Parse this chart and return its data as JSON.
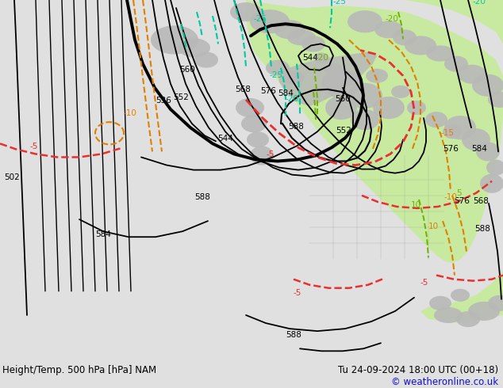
{
  "title_left": "Height/Temp. 500 hPa [hPa] NAM",
  "title_right": "Tu 24-09-2024 18:00 UTC (00+18)",
  "copyright": "© weatheronline.co.uk",
  "bg_color": "#e0e0e0",
  "map_bg_color": "#e8e8e8",
  "green_fill_color": "#c8eaa0",
  "gray_land_color": "#b8b8b8",
  "height_contour_color": "#000000",
  "temp_red_color": "#e83030",
  "temp_teal_color": "#00c8a0",
  "temp_orange_color": "#e08000",
  "temp_green_color": "#70b000",
  "copyright_color": "#1010cc",
  "fig_width": 6.34,
  "fig_height": 4.9,
  "dpi": 100
}
